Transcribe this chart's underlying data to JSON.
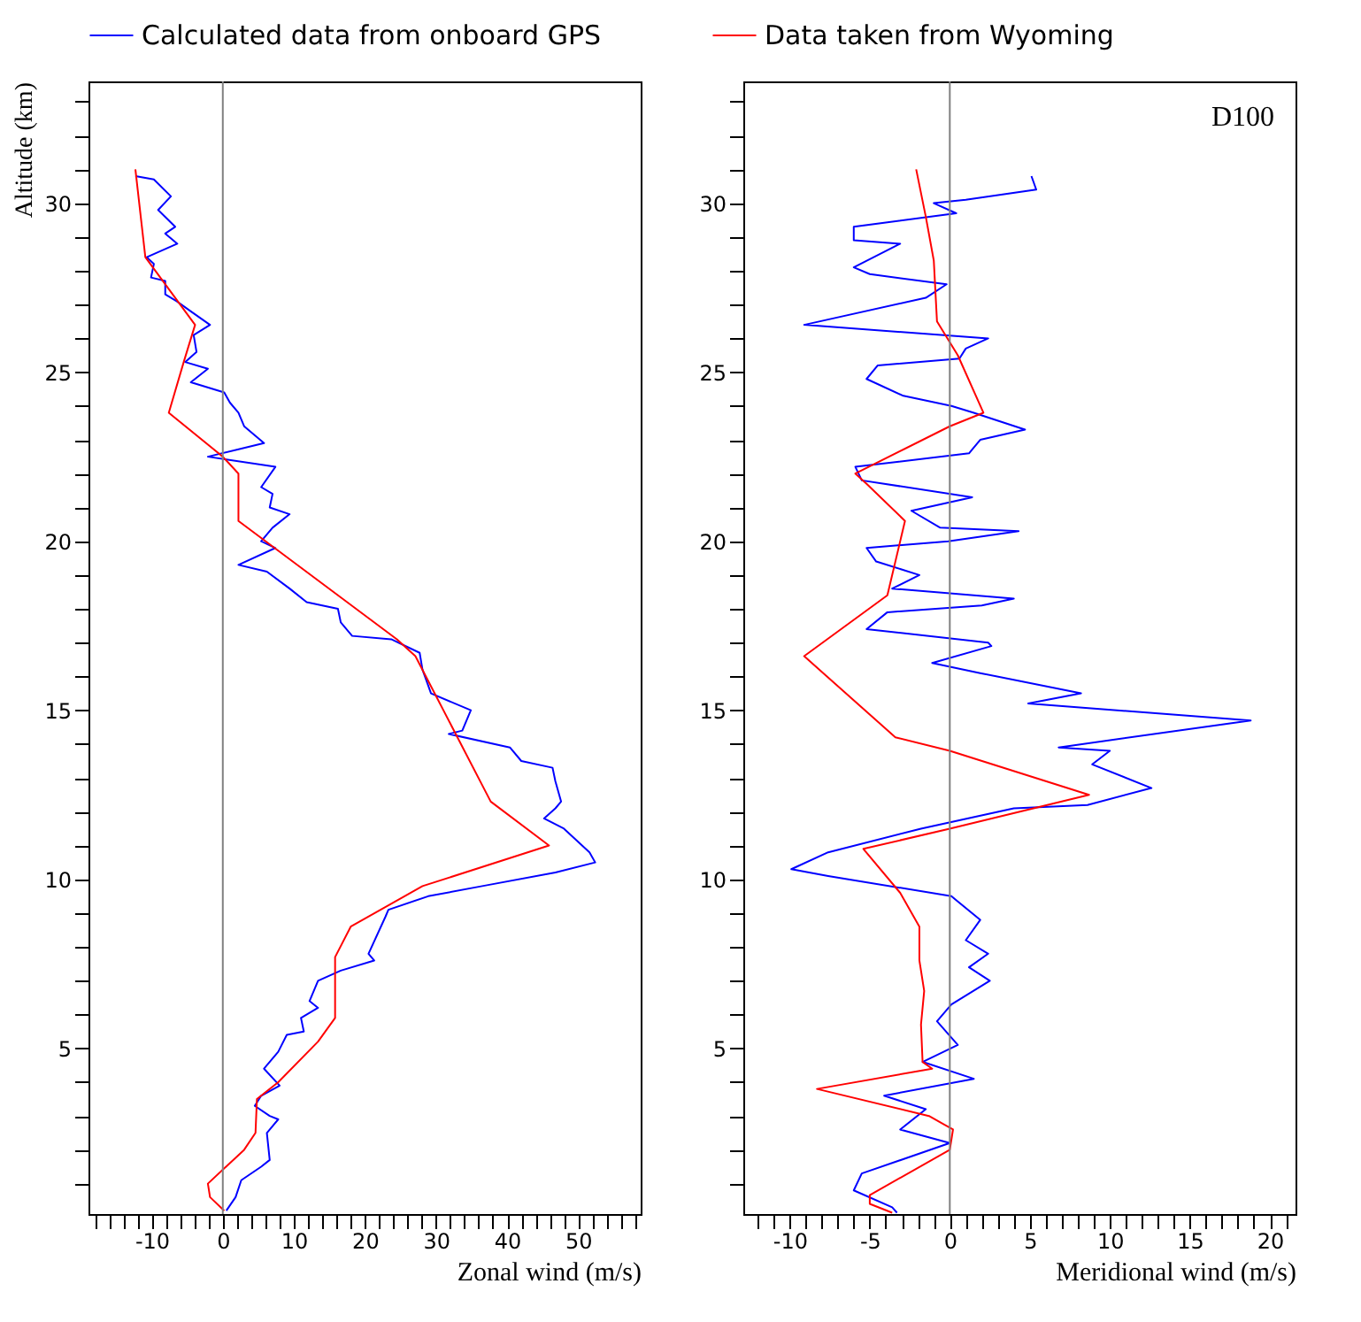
{
  "chart_data": [
    {
      "type": "line",
      "xlabel": "Zonal wind (m/s)",
      "ylabel": "Altitude (km)",
      "legend": "top",
      "grid": false,
      "xlim": [
        -18.9,
        58.8
      ],
      "ylim": [
        0.1,
        33.6
      ],
      "xticks": [
        {
          "value": -18,
          "label": null
        },
        {
          "value": -16,
          "label": null
        },
        {
          "value": -14,
          "label": null
        },
        {
          "value": -12,
          "label": null
        },
        -10,
        {
          "value": -8,
          "label": null
        },
        {
          "value": -6,
          "label": null
        },
        {
          "value": -4,
          "label": null
        },
        {
          "value": -2,
          "label": null
        },
        0,
        {
          "value": 2,
          "label": null
        },
        {
          "value": 4,
          "label": null
        },
        {
          "value": 6,
          "label": null
        },
        {
          "value": 8,
          "label": null
        },
        10,
        {
          "value": 12,
          "label": null
        },
        {
          "value": 14,
          "label": null
        },
        {
          "value": 16,
          "label": null
        },
        {
          "value": 18,
          "label": null
        },
        20,
        {
          "value": 22,
          "label": null
        },
        {
          "value": 24,
          "label": null
        },
        {
          "value": 26,
          "label": null
        },
        {
          "value": 28,
          "label": null
        },
        30,
        {
          "value": 32,
          "label": null
        },
        {
          "value": 34,
          "label": null
        },
        {
          "value": 36,
          "label": null
        },
        {
          "value": 38,
          "label": null
        },
        40,
        {
          "value": 42,
          "label": null
        },
        {
          "value": 44,
          "label": null
        },
        {
          "value": 46,
          "label": null
        },
        {
          "value": 48,
          "label": null
        },
        50,
        {
          "value": 52,
          "label": null
        },
        {
          "value": 54,
          "label": null
        },
        {
          "value": 56,
          "label": null
        },
        {
          "value": 58,
          "label": null
        }
      ],
      "yticks": [
        {
          "value": 1,
          "label": null
        },
        {
          "value": 2,
          "label": null
        },
        {
          "value": 3,
          "label": null
        },
        {
          "value": 4,
          "label": null
        },
        5,
        {
          "value": 6,
          "label": null
        },
        {
          "value": 7,
          "label": null
        },
        {
          "value": 8,
          "label": null
        },
        {
          "value": 9,
          "label": null
        },
        10,
        {
          "value": 11,
          "label": null
        },
        {
          "value": 12,
          "label": null
        },
        {
          "value": 13,
          "label": null
        },
        {
          "value": 14,
          "label": null
        },
        15,
        {
          "value": 16,
          "label": null
        },
        {
          "value": 17,
          "label": null
        },
        {
          "value": 18,
          "label": null
        },
        {
          "value": 19,
          "label": null
        },
        20,
        {
          "value": 21,
          "label": null
        },
        {
          "value": 22,
          "label": null
        },
        {
          "value": 23,
          "label": null
        },
        {
          "value": 24,
          "label": null
        },
        25,
        {
          "value": 26,
          "label": null
        },
        {
          "value": 27,
          "label": null
        },
        {
          "value": 28,
          "label": null
        },
        {
          "value": 29,
          "label": null
        },
        30,
        {
          "value": 31,
          "label": null
        },
        {
          "value": 32,
          "label": null
        },
        {
          "value": 33,
          "label": null
        }
      ],
      "ref_lines": [
        {
          "axis": "x",
          "value": 0,
          "label": null,
          "color": "#808080"
        }
      ],
      "series": [
        {
          "name": "Calculated data from onboard GPS",
          "color": "#0000ff",
          "x": [
            -12.3,
            -9.7,
            -7.3,
            -9.1,
            -6.7,
            -8.1,
            -6.4,
            -10.7,
            -9.7,
            -10.1,
            -8.1,
            -8.1,
            -6.5,
            -4.5,
            -1.8,
            -4.1,
            -3.7,
            -5.3,
            -2.1,
            -4.5,
            0.2,
            1.0,
            2.2,
            3.0,
            5.8,
            -2.1,
            7.4,
            5.4,
            7.0,
            6.6,
            9.4,
            7.0,
            5.4,
            7.4,
            2.2,
            6.2,
            9.4,
            11.8,
            16.2,
            16.6,
            18.2,
            23.7,
            27.7,
            28.1,
            29.3,
            34.9,
            33.7,
            31.8,
            40.4,
            42.0,
            46.4,
            46.8,
            47.6,
            46.8,
            45.2,
            48.0,
            51.6,
            52.4,
            46.8,
            36.5,
            28.9,
            23.3,
            22.9,
            20.5,
            21.3,
            16.6,
            13.4,
            12.2,
            13.4,
            11.0,
            11.4,
            9.0,
            7.8,
            5.8,
            8.0,
            5.4,
            4.5,
            6.6,
            7.8,
            6.2,
            6.6,
            5.4,
            2.6,
            1.8,
            0.5
          ],
          "values": [
            30.8,
            30.7,
            30.2,
            29.8,
            29.3,
            29.1,
            28.8,
            28.4,
            28.2,
            27.8,
            27.7,
            27.3,
            27.1,
            26.8,
            26.4,
            26.1,
            25.6,
            25.3,
            25.1,
            24.7,
            24.4,
            24.1,
            23.8,
            23.4,
            22.9,
            22.5,
            22.2,
            21.6,
            21.4,
            21.0,
            20.8,
            20.4,
            20.0,
            19.8,
            19.3,
            19.1,
            18.6,
            18.2,
            18.0,
            17.6,
            17.2,
            17.1,
            16.7,
            16.2,
            15.5,
            15.0,
            14.4,
            14.3,
            13.9,
            13.5,
            13.3,
            12.9,
            12.3,
            12.1,
            11.8,
            11.5,
            10.8,
            10.5,
            10.2,
            9.8,
            9.5,
            9.1,
            8.9,
            7.8,
            7.6,
            7.3,
            7.0,
            6.4,
            6.2,
            5.9,
            5.5,
            5.4,
            4.9,
            4.4,
            3.9,
            3.6,
            3.3,
            3.0,
            2.9,
            2.5,
            1.7,
            1.5,
            1.1,
            0.6,
            0.2
          ]
        },
        {
          "name": "Data taken from Wyoming",
          "color": "#ff0000",
          "x": [
            -12.3,
            -10.9,
            -3.9,
            -5.5,
            -7.6,
            0,
            2.2,
            2.2,
            24.5,
            27.1,
            37.7,
            45.9,
            28.1,
            18.0,
            15.8,
            15.8,
            13.4,
            7.8,
            4.8,
            4.6,
            3.0,
            -2.1,
            -1.8,
            0.2
          ],
          "values": [
            31.0,
            28.4,
            26.4,
            25.3,
            23.8,
            22.5,
            22.0,
            20.6,
            17.1,
            16.6,
            12.3,
            11.0,
            9.8,
            8.6,
            7.7,
            5.9,
            5.2,
            4.0,
            3.5,
            2.5,
            2.0,
            1.0,
            0.6,
            0.2
          ]
        }
      ]
    },
    {
      "type": "line",
      "xlabel": "Meridional wind (m/s)",
      "grid": false,
      "annotations": [
        "D100"
      ],
      "xlim": [
        -12.9,
        21.6
      ],
      "ylim": [
        0.1,
        33.6
      ],
      "xticks": [
        {
          "value": -12,
          "label": null
        },
        {
          "value": -11,
          "label": null
        },
        -10,
        {
          "value": -9,
          "label": null
        },
        {
          "value": -8,
          "label": null
        },
        {
          "value": -7,
          "label": null
        },
        {
          "value": -6,
          "label": null
        },
        -5,
        {
          "value": -4,
          "label": null
        },
        {
          "value": -3,
          "label": null
        },
        {
          "value": -2,
          "label": null
        },
        {
          "value": -1,
          "label": null
        },
        0,
        {
          "value": 1,
          "label": null
        },
        {
          "value": 2,
          "label": null
        },
        {
          "value": 3,
          "label": null
        },
        {
          "value": 4,
          "label": null
        },
        5,
        {
          "value": 6,
          "label": null
        },
        {
          "value": 7,
          "label": null
        },
        {
          "value": 8,
          "label": null
        },
        {
          "value": 9,
          "label": null
        },
        10,
        {
          "value": 11,
          "label": null
        },
        {
          "value": 12,
          "label": null
        },
        {
          "value": 13,
          "label": null
        },
        {
          "value": 14,
          "label": null
        },
        15,
        {
          "value": 16,
          "label": null
        },
        {
          "value": 17,
          "label": null
        },
        {
          "value": 18,
          "label": null
        },
        {
          "value": 19,
          "label": null
        },
        20,
        {
          "value": 21,
          "label": null
        }
      ],
      "yticks": [
        {
          "value": 1,
          "label": null
        },
        {
          "value": 2,
          "label": null
        },
        {
          "value": 3,
          "label": null
        },
        {
          "value": 4,
          "label": null
        },
        5,
        {
          "value": 6,
          "label": null
        },
        {
          "value": 7,
          "label": null
        },
        {
          "value": 8,
          "label": null
        },
        {
          "value": 9,
          "label": null
        },
        10,
        {
          "value": 11,
          "label": null
        },
        {
          "value": 12,
          "label": null
        },
        {
          "value": 13,
          "label": null
        },
        {
          "value": 14,
          "label": null
        },
        15,
        {
          "value": 16,
          "label": null
        },
        {
          "value": 17,
          "label": null
        },
        {
          "value": 18,
          "label": null
        },
        {
          "value": 19,
          "label": null
        },
        20,
        {
          "value": 21,
          "label": null
        },
        {
          "value": 22,
          "label": null
        },
        {
          "value": 23,
          "label": null
        },
        {
          "value": 24,
          "label": null
        },
        25,
        {
          "value": 26,
          "label": null
        },
        {
          "value": 27,
          "label": null
        },
        {
          "value": 28,
          "label": null
        },
        {
          "value": 29,
          "label": null
        },
        30,
        {
          "value": 31,
          "label": null
        },
        {
          "value": 32,
          "label": null
        },
        {
          "value": 33,
          "label": null
        }
      ],
      "ref_lines": [
        {
          "axis": "x",
          "value": 0,
          "label": null,
          "color": "#808080"
        }
      ],
      "series": [
        {
          "color": "#0000ff",
          "x": [
            5.1,
            5.4,
            1.0,
            -1.0,
            0.4,
            -6.0,
            -6.0,
            -3.1,
            -6.0,
            -5.0,
            -0.2,
            -1.5,
            -9.1,
            2.4,
            1.0,
            0.6,
            -4.5,
            -5.2,
            -2.9,
            0.1,
            1.5,
            4.7,
            1.9,
            1.2,
            -5.9,
            -5.5,
            1.4,
            -2.4,
            -0.6,
            4.3,
            -0.1,
            -5.2,
            -4.6,
            -1.9,
            -3.6,
            4.0,
            2.0,
            -3.9,
            -5.2,
            2.4,
            2.6,
            -1.1,
            1.9,
            8.2,
            4.9,
            18.8,
            6.8,
            10.0,
            8.9,
            12.6,
            8.6,
            4.0,
            -1.8,
            -7.6,
            -9.9,
            -7.6,
            0.1,
            1.9,
            1.0,
            2.4,
            1.2,
            2.5,
            0.1,
            -0.8,
            0.5,
            -1.7,
            1.5,
            -4.1,
            -1.5,
            -3.1,
            0,
            -5.5,
            -6.0,
            -3.6,
            -3.3
          ],
          "values": [
            30.8,
            30.4,
            30.1,
            30.0,
            29.7,
            29.3,
            28.9,
            28.8,
            28.1,
            27.9,
            27.6,
            27.2,
            26.4,
            26.0,
            25.7,
            25.4,
            25.2,
            24.8,
            24.3,
            24.0,
            23.8,
            23.3,
            23.0,
            22.6,
            22.2,
            21.8,
            21.3,
            20.9,
            20.4,
            20.3,
            20.0,
            19.8,
            19.4,
            19.0,
            18.6,
            18.3,
            18.1,
            17.9,
            17.4,
            17.0,
            16.9,
            16.4,
            16.1,
            15.5,
            15.2,
            14.7,
            13.9,
            13.8,
            13.4,
            12.7,
            12.2,
            12.1,
            11.5,
            10.8,
            10.3,
            10.1,
            9.5,
            8.8,
            8.2,
            7.8,
            7.4,
            7.0,
            6.3,
            5.8,
            5.1,
            4.6,
            4.1,
            3.6,
            3.2,
            2.6,
            2.2,
            1.3,
            0.8,
            0.3,
            0.14
          ]
        },
        {
          "color": "#ff0000",
          "x": [
            -2.1,
            -1.5,
            -1.0,
            -0.8,
            0.5,
            2.1,
            0,
            -5.9,
            -5.2,
            -2.8,
            -3.9,
            -9.1,
            -3.4,
            0,
            8.7,
            0,
            -5.4,
            -3.1,
            -1.9,
            -1.9,
            -1.6,
            -1.8,
            -1.7,
            -1.1,
            -8.3,
            -1.3,
            0.2,
            0,
            -5.0,
            -5.0,
            -3.6
          ],
          "values": [
            31.0,
            29.6,
            28.3,
            26.5,
            25.5,
            23.8,
            23.4,
            22.0,
            21.7,
            20.6,
            18.4,
            16.6,
            14.2,
            13.8,
            12.5,
            11.5,
            10.9,
            9.6,
            8.6,
            7.6,
            6.7,
            5.7,
            4.6,
            4.4,
            3.8,
            3.0,
            2.6,
            2.0,
            0.66,
            0.4,
            0.14
          ]
        }
      ]
    }
  ]
}
